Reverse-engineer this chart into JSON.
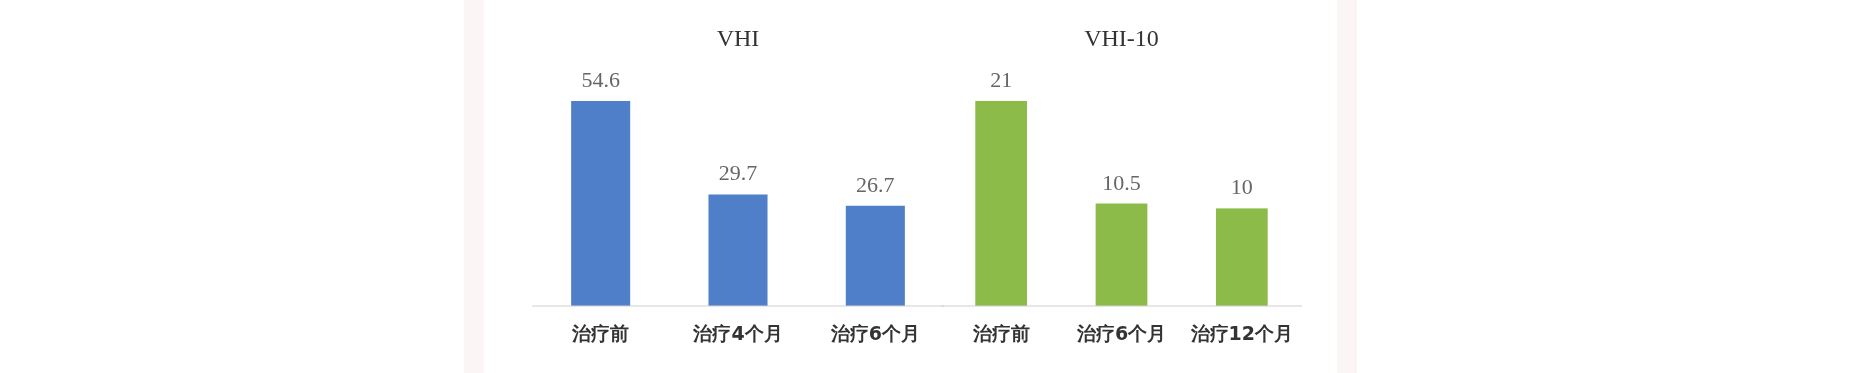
{
  "chart_data": [
    {
      "type": "bar",
      "title": "VHI",
      "categories": [
        "治疗前",
        "治疗4个月",
        "治疗6个月"
      ],
      "values": [
        54.6,
        29.7,
        26.7
      ],
      "color": "#4f7fc8",
      "data_labels": true
    },
    {
      "type": "bar",
      "title": "VHI-10",
      "categories": [
        "治疗前",
        "治疗6个月",
        "治疗12个月"
      ],
      "values": [
        21,
        10.5,
        10
      ],
      "color": "#8dbb4a",
      "data_labels": true
    }
  ]
}
